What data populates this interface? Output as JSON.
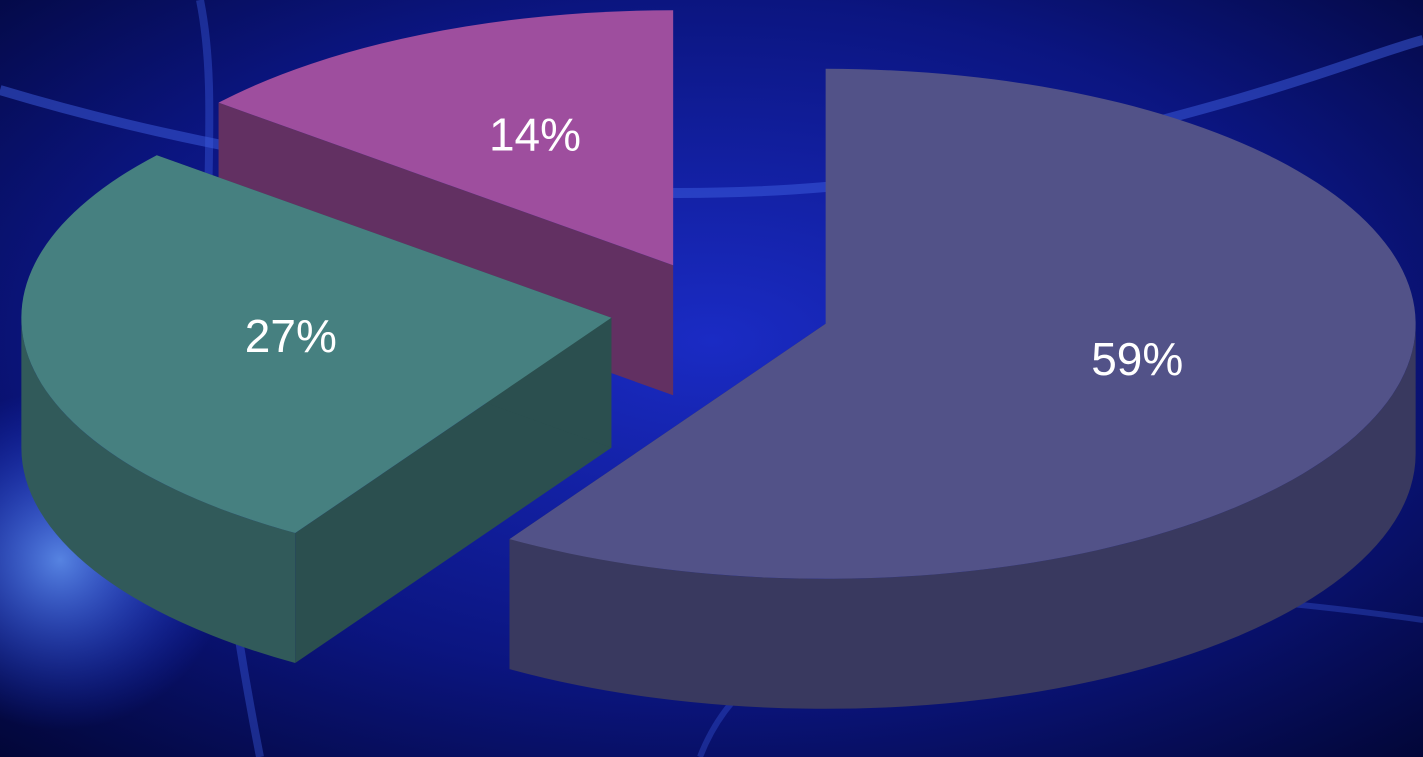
{
  "chart_data": {
    "type": "pie",
    "values": [
      59,
      27,
      14
    ],
    "value_labels": [
      "59%",
      "27%",
      "14%"
    ],
    "colors": [
      "#525288",
      "#468080",
      "#9e4e9e"
    ]
  }
}
